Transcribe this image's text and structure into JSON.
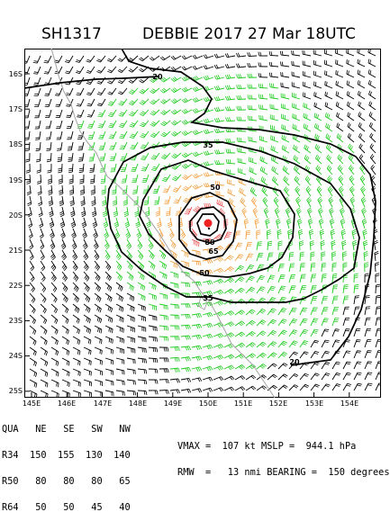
{
  "header": {
    "storm_id": "SH1317",
    "description": "DEBBIE 2017 27 Mar 18UTC"
  },
  "map": {
    "lat_labels": [
      "16S",
      "17S",
      "18S",
      "19S",
      "20S",
      "21S",
      "22S",
      "23S",
      "24S",
      "25S"
    ],
    "lon_labels": [
      "145E",
      "146E",
      "147E",
      "148E",
      "149E",
      "150E",
      "151E",
      "152E",
      "153E",
      "154E"
    ],
    "contour_labels": [
      "20",
      "35",
      "50",
      "65",
      "80",
      "50",
      "35",
      "20"
    ],
    "colors": {
      "barb_black": "#000000",
      "barb_green": "#22cc22",
      "barb_orange": "#f2a040",
      "barb_red": "#ee5555",
      "center_marker": "#ee2222",
      "coastline": "#a8a8a8"
    }
  },
  "radii_table": {
    "header": [
      "QUA",
      "NE",
      "SE",
      "SW",
      "NW"
    ],
    "rows": [
      {
        "label": "R34",
        "values": [
          "150",
          "155",
          "130",
          "140"
        ]
      },
      {
        "label": "R50",
        "values": [
          "80",
          "80",
          "80",
          "65"
        ]
      },
      {
        "label": "R64",
        "values": [
          "50",
          "50",
          "45",
          "40"
        ]
      }
    ]
  },
  "metrics": {
    "line1": "VMAX =  107 kt MSLP =  944.1 hPa",
    "line2": "RMW  =   13 nmi BEARING =  150 degrees"
  }
}
